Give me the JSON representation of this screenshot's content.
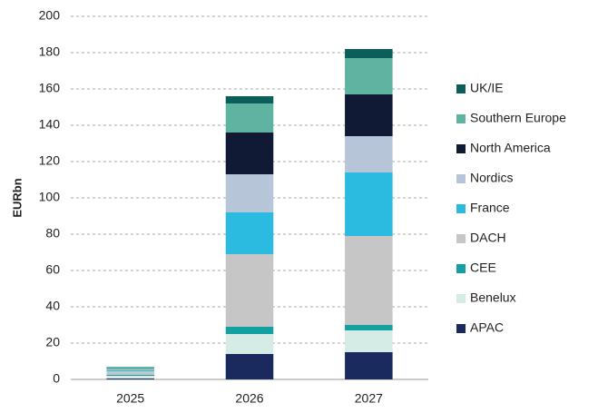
{
  "chart_data": {
    "type": "stacked_bar",
    "ylabel": "EURbn",
    "categories": [
      "2025",
      "2026",
      "2027"
    ],
    "series": [
      {
        "name": "APAC",
        "color": "#1b2a5e",
        "values": [
          0.5,
          14,
          15
        ]
      },
      {
        "name": "Benelux",
        "color": "#d4ebe6",
        "values": [
          1.5,
          11,
          12
        ]
      },
      {
        "name": "CEE",
        "color": "#12a0a0",
        "values": [
          0.5,
          4,
          3
        ]
      },
      {
        "name": "DACH",
        "color": "#c6c6c6",
        "values": [
          2,
          40,
          49
        ]
      },
      {
        "name": "France",
        "color": "#2bbbe0",
        "values": [
          0.5,
          23,
          35
        ]
      },
      {
        "name": "Nordics",
        "color": "#b7c5d8",
        "values": [
          0.5,
          21,
          20
        ]
      },
      {
        "name": "North America",
        "color": "#111a35",
        "values": [
          0,
          23,
          23
        ]
      },
      {
        "name": "Southern Europe",
        "color": "#5eb4a0",
        "values": [
          1.5,
          16,
          20
        ]
      },
      {
        "name": "UK/IE",
        "color": "#0b5e5a",
        "values": [
          0,
          4,
          5
        ]
      }
    ],
    "ylim": [
      0,
      200
    ],
    "yticks": [
      0,
      20,
      40,
      60,
      80,
      100,
      120,
      140,
      160,
      180,
      200
    ],
    "grid": true,
    "legend": "right"
  }
}
